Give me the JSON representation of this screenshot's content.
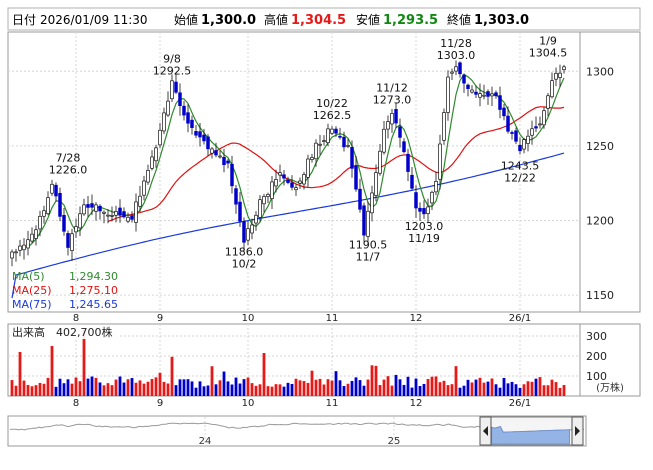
{
  "header": {
    "date_label": "日付",
    "date_value": "2026/01/09 11:30",
    "open_label": "始値",
    "open_value": "1,300.0",
    "high_label": "高値",
    "high_value": "1,304.5",
    "low_label": "安値",
    "low_value": "1,293.5",
    "close_label": "終値",
    "close_value": "1,303.0"
  },
  "legend": {
    "ma5_label": "MA(5)",
    "ma5_value": "1,294.30",
    "ma25_label": "MA(25)",
    "ma25_value": "1,275.10",
    "ma75_label": "MA(75)",
    "ma75_value": "1,245.65"
  },
  "volume_panel": {
    "label": "出来高",
    "value": "402,700株",
    "unit": "(万株)"
  },
  "colors": {
    "up": "#e61919",
    "down": "#0000cc",
    "ma5": "#2e8b2e",
    "ma25": "#e01010",
    "ma75": "#1a3ad8",
    "high_text": "#e61919",
    "low_text": "#118811",
    "navigator_fill": "#9bbcf0"
  },
  "icons": {
    "navigator_left": "chevron-left-icon",
    "navigator_right": "chevron-right-icon"
  },
  "chart_data": [
    {
      "type": "candlestick",
      "x_axis": {
        "tick_labels": [
          "8",
          "9",
          "10",
          "11",
          "12",
          "26/1"
        ]
      },
      "y_axis": {
        "ticks": [
          1150,
          1200,
          1250,
          1300
        ],
        "range": [
          1140,
          1325
        ]
      },
      "grid": true,
      "annotations": [
        {
          "date": "7/28",
          "value": "1226.0",
          "kind": "high"
        },
        {
          "date": "9/8",
          "value": "1292.5",
          "kind": "high"
        },
        {
          "date": "10/22",
          "value": "1262.5",
          "kind": "high"
        },
        {
          "date": "11/12",
          "value": "1273.0",
          "kind": "high"
        },
        {
          "date": "11/28",
          "value": "1303.0",
          "kind": "high"
        },
        {
          "date": "1/9",
          "value": "1304.5",
          "kind": "high"
        },
        {
          "date": "10/2",
          "value": "1186.0",
          "kind": "low"
        },
        {
          "date": "11/7",
          "value": "1190.5",
          "kind": "low"
        },
        {
          "date": "11/19",
          "value": "1203.0",
          "kind": "low"
        },
        {
          "date": "12/22",
          "value": "1243.5",
          "kind": "low"
        }
      ],
      "anchors": [
        [
          0,
          1178
        ],
        [
          6,
          1192
        ],
        [
          10,
          1226
        ],
        [
          14,
          1182
        ],
        [
          18,
          1212
        ],
        [
          24,
          1206
        ],
        [
          30,
          1203
        ],
        [
          36,
          1248
        ],
        [
          40,
          1292
        ],
        [
          44,
          1266
        ],
        [
          48,
          1252
        ],
        [
          54,
          1236
        ],
        [
          58,
          1186
        ],
        [
          62,
          1212
        ],
        [
          67,
          1232
        ],
        [
          71,
          1222
        ],
        [
          76,
          1250
        ],
        [
          80,
          1262
        ],
        [
          84,
          1248
        ],
        [
          88,
          1192
        ],
        [
          91,
          1232
        ],
        [
          93,
          1262
        ],
        [
          95,
          1273
        ],
        [
          98,
          1245
        ],
        [
          101,
          1210
        ],
        [
          103,
          1203
        ],
        [
          106,
          1228
        ],
        [
          109,
          1294
        ],
        [
          111,
          1303
        ],
        [
          114,
          1288
        ],
        [
          118,
          1286
        ],
        [
          121,
          1282
        ],
        [
          124,
          1262
        ],
        [
          127,
          1248
        ],
        [
          130,
          1260
        ],
        [
          132,
          1266
        ],
        [
          134,
          1285
        ],
        [
          136,
          1298
        ],
        [
          138,
          1303
        ]
      ],
      "series": [
        {
          "name": "MA(5)",
          "period": 5
        },
        {
          "name": "MA(25)",
          "period": 25
        },
        {
          "name": "MA(75)",
          "period": 75
        }
      ]
    },
    {
      "type": "bar",
      "x_axis": {
        "tick_labels": [
          "8",
          "9",
          "10",
          "11",
          "12",
          "26/1"
        ]
      },
      "y_axis": {
        "ticks": [
          100,
          200,
          300
        ],
        "range": [
          0,
          350
        ],
        "unit": "(万株)"
      },
      "grid": true
    },
    {
      "type": "area",
      "x_axis": {
        "tick_labels": [
          "24",
          "25"
        ]
      },
      "grid": false
    }
  ]
}
